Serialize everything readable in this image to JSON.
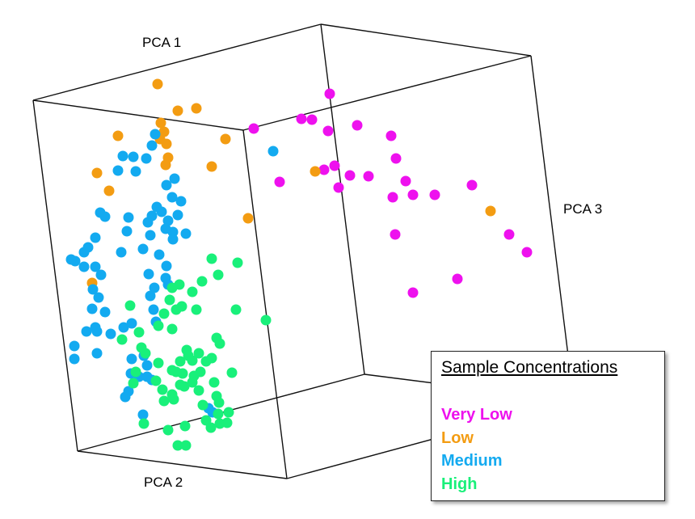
{
  "chart_data": {
    "type": "scatter",
    "projection": "3d",
    "axes": {
      "x": "PCA 1",
      "y": "PCA 2",
      "z": "PCA 3"
    },
    "legend": {
      "title": "Sample Concentrations",
      "placement": "bottom-right",
      "entries": [
        "Very Low",
        "Low",
        "Medium",
        "High"
      ]
    },
    "series": [
      {
        "name": "Very Low",
        "color": "#ee11ee",
        "points": [
          [
            408,
            116
          ],
          [
            314,
            159
          ],
          [
            373,
            147
          ],
          [
            386,
            148
          ],
          [
            406,
            162
          ],
          [
            442,
            155
          ],
          [
            484,
            168
          ],
          [
            490,
            196
          ],
          [
            346,
            225
          ],
          [
            401,
            210
          ],
          [
            414,
            205
          ],
          [
            419,
            232
          ],
          [
            433,
            217
          ],
          [
            456,
            218
          ],
          [
            502,
            224
          ],
          [
            486,
            244
          ],
          [
            511,
            241
          ],
          [
            538,
            241
          ],
          [
            584,
            229
          ],
          [
            630,
            290
          ],
          [
            652,
            312
          ],
          [
            489,
            290
          ],
          [
            566,
            345
          ],
          [
            511,
            362
          ]
        ]
      },
      {
        "name": "Low",
        "color": "#f39c12",
        "points": [
          [
            195,
            104
          ],
          [
            243,
            134
          ],
          [
            220,
            137
          ],
          [
            199,
            152
          ],
          [
            203,
            163
          ],
          [
            146,
            168
          ],
          [
            198,
            172
          ],
          [
            279,
            172
          ],
          [
            206,
            178
          ],
          [
            208,
            195
          ],
          [
            205,
            204
          ],
          [
            262,
            206
          ],
          [
            120,
            214
          ],
          [
            135,
            236
          ],
          [
            390,
            212
          ],
          [
            307,
            270
          ],
          [
            607,
            261
          ],
          [
            114,
            350
          ]
        ]
      },
      {
        "name": "Medium",
        "color": "#13aaf0",
        "points": [
          [
            338,
            187
          ],
          [
            192,
            166
          ],
          [
            188,
            180
          ],
          [
            152,
            193
          ],
          [
            165,
            194
          ],
          [
            181,
            196
          ],
          [
            146,
            211
          ],
          [
            216,
            221
          ],
          [
            168,
            212
          ],
          [
            206,
            229
          ],
          [
            213,
            244
          ],
          [
            224,
            249
          ],
          [
            194,
            256
          ],
          [
            188,
            267
          ],
          [
            200,
            262
          ],
          [
            220,
            266
          ],
          [
            208,
            273
          ],
          [
            183,
            275
          ],
          [
            214,
            287
          ],
          [
            230,
            289
          ],
          [
            205,
            283
          ],
          [
            124,
            263
          ],
          [
            130,
            268
          ],
          [
            157,
            286
          ],
          [
            159,
            269
          ],
          [
            186,
            291
          ],
          [
            214,
            296
          ],
          [
            118,
            294
          ],
          [
            109,
            306
          ],
          [
            104,
            312
          ],
          [
            93,
            323
          ],
          [
            88,
            321
          ],
          [
            104,
            330
          ],
          [
            118,
            330
          ],
          [
            125,
            340
          ],
          [
            150,
            312
          ],
          [
            177,
            308
          ],
          [
            197,
            315
          ],
          [
            206,
            329
          ],
          [
            184,
            339
          ],
          [
            191,
            356
          ],
          [
            186,
            366
          ],
          [
            190,
            383
          ],
          [
            205,
            344
          ],
          [
            208,
            352
          ],
          [
            115,
            358
          ],
          [
            122,
            368
          ],
          [
            114,
            382
          ],
          [
            130,
            386
          ],
          [
            118,
            405
          ],
          [
            107,
            410
          ],
          [
            120,
            410
          ],
          [
            137,
            413
          ],
          [
            153,
            405
          ],
          [
            163,
            400
          ],
          [
            120,
            437
          ],
          [
            92,
            428
          ],
          [
            92,
            444
          ],
          [
            162,
            462
          ],
          [
            172,
            466
          ],
          [
            178,
            440
          ],
          [
            182,
            452
          ],
          [
            163,
            444
          ],
          [
            159,
            484
          ],
          [
            155,
            491
          ],
          [
            182,
            466
          ],
          [
            188,
            470
          ],
          [
            177,
            513
          ],
          [
            258,
            505
          ],
          [
            263,
            510
          ],
          [
            193,
            398
          ]
        ]
      },
      {
        "name": "High",
        "color": "#19f07a",
        "points": [
          [
            262,
            320
          ],
          [
            294,
            325
          ],
          [
            270,
            340
          ],
          [
            222,
            352
          ],
          [
            250,
            348
          ],
          [
            213,
            356
          ],
          [
            238,
            361
          ],
          [
            210,
            371
          ],
          [
            243,
            383
          ],
          [
            161,
            378
          ],
          [
            218,
            383
          ],
          [
            225,
            379
          ],
          [
            203,
            388
          ],
          [
            292,
            383
          ],
          [
            329,
            396
          ],
          [
            196,
            403
          ],
          [
            213,
            407
          ],
          [
            172,
            411
          ],
          [
            151,
            420
          ],
          [
            175,
            430
          ],
          [
            180,
            437
          ],
          [
            231,
            433
          ],
          [
            233,
            440
          ],
          [
            246,
            437
          ],
          [
            268,
            418
          ],
          [
            272,
            425
          ],
          [
            223,
            447
          ],
          [
            238,
            446
          ],
          [
            255,
            447
          ],
          [
            262,
            443
          ],
          [
            196,
            449
          ],
          [
            213,
            458
          ],
          [
            168,
            460
          ],
          [
            165,
            474
          ],
          [
            193,
            471
          ],
          [
            218,
            460
          ],
          [
            226,
            462
          ],
          [
            240,
            465
          ],
          [
            248,
            460
          ],
          [
            287,
            461
          ],
          [
            201,
            482
          ],
          [
            213,
            488
          ],
          [
            223,
            476
          ],
          [
            228,
            478
          ],
          [
            238,
            473
          ],
          [
            246,
            483
          ],
          [
            265,
            473
          ],
          [
            203,
            496
          ],
          [
            215,
            494
          ],
          [
            251,
            501
          ],
          [
            268,
            490
          ],
          [
            271,
            498
          ],
          [
            255,
            520
          ],
          [
            272,
            524
          ],
          [
            208,
            532
          ],
          [
            178,
            524
          ],
          [
            229,
            527
          ],
          [
            270,
            512
          ],
          [
            283,
            510
          ],
          [
            281,
            523
          ],
          [
            220,
            551
          ],
          [
            230,
            551
          ],
          [
            261,
            529
          ]
        ]
      }
    ]
  }
}
